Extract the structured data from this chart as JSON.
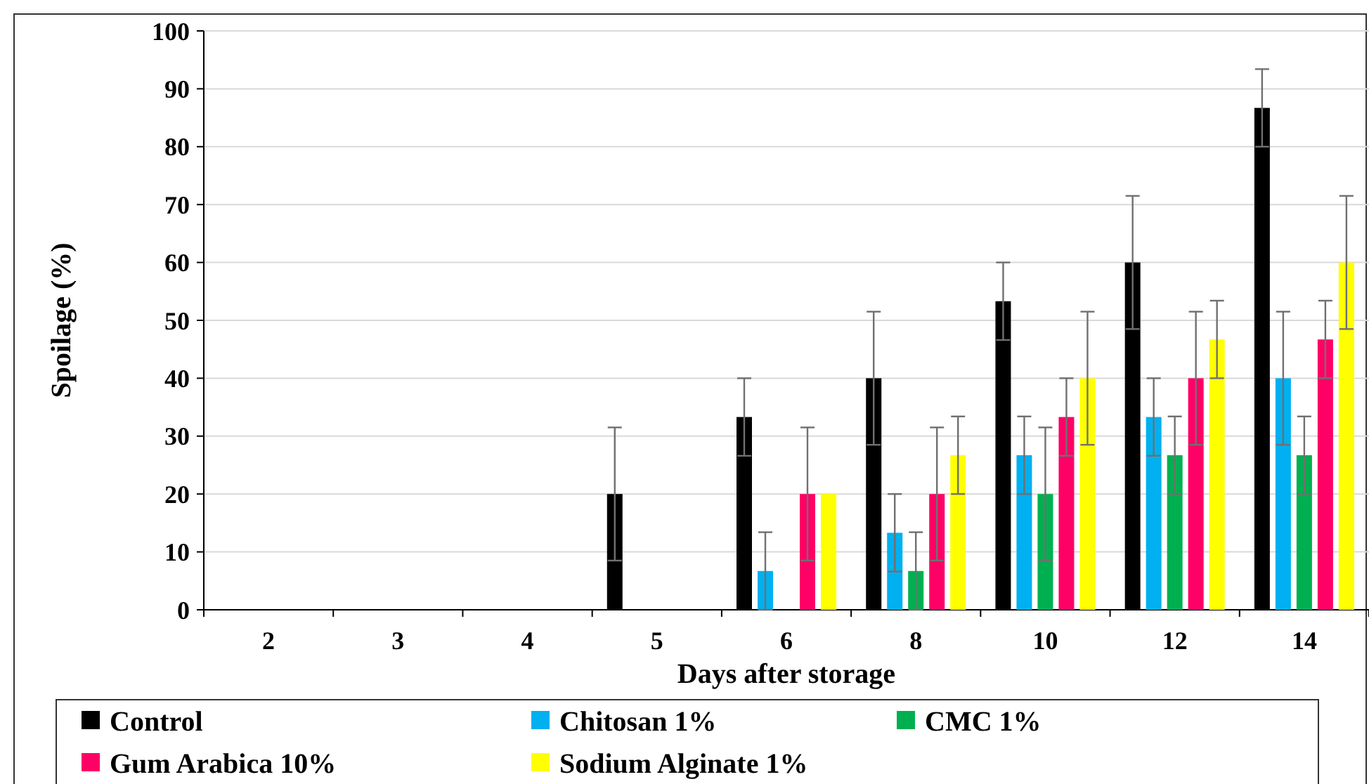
{
  "chart_data": {
    "type": "bar",
    "xlabel": "Days after storage",
    "ylabel": "Spoilage (%)",
    "categories": [
      "2",
      "3",
      "4",
      "5",
      "6",
      "8",
      "10",
      "12",
      "14"
    ],
    "ylim": [
      0,
      100
    ],
    "yticks": [
      0,
      10,
      20,
      30,
      40,
      50,
      60,
      70,
      80,
      90,
      100
    ],
    "grid": "y",
    "legend": "bottom",
    "series": [
      {
        "name": "Control",
        "color": "#000000",
        "values": [
          0,
          0,
          0,
          20,
          33.3,
          40,
          53.3,
          60,
          86.7
        ],
        "errors": [
          null,
          null,
          null,
          11.5,
          6.7,
          11.5,
          6.7,
          11.5,
          6.7
        ]
      },
      {
        "name": "Chitosan 1%",
        "color": "#00b0f0",
        "values": [
          0,
          0,
          0,
          0,
          6.7,
          13.3,
          26.7,
          33.3,
          40
        ],
        "errors": [
          null,
          null,
          null,
          null,
          6.7,
          6.7,
          6.7,
          6.7,
          11.5
        ]
      },
      {
        "name": "CMC 1%",
        "color": "#00b050",
        "values": [
          0,
          0,
          0,
          0,
          0,
          6.7,
          20,
          26.7,
          26.7
        ],
        "errors": [
          null,
          null,
          null,
          null,
          null,
          6.7,
          11.5,
          6.7,
          6.7
        ]
      },
      {
        "name": "Gum Arabica 10%",
        "color": "#ff0066",
        "values": [
          0,
          0,
          0,
          0,
          20,
          20,
          33.3,
          40,
          46.7
        ],
        "errors": [
          null,
          null,
          null,
          null,
          11.5,
          11.5,
          6.7,
          11.5,
          6.7
        ]
      },
      {
        "name": "Sodium Alginate 1%",
        "color": "#ffff00",
        "values": [
          0,
          0,
          0,
          0,
          20,
          26.7,
          40,
          46.7,
          60
        ],
        "errors": [
          null,
          null,
          null,
          null,
          null,
          6.7,
          11.5,
          6.7,
          11.5
        ]
      }
    ]
  }
}
